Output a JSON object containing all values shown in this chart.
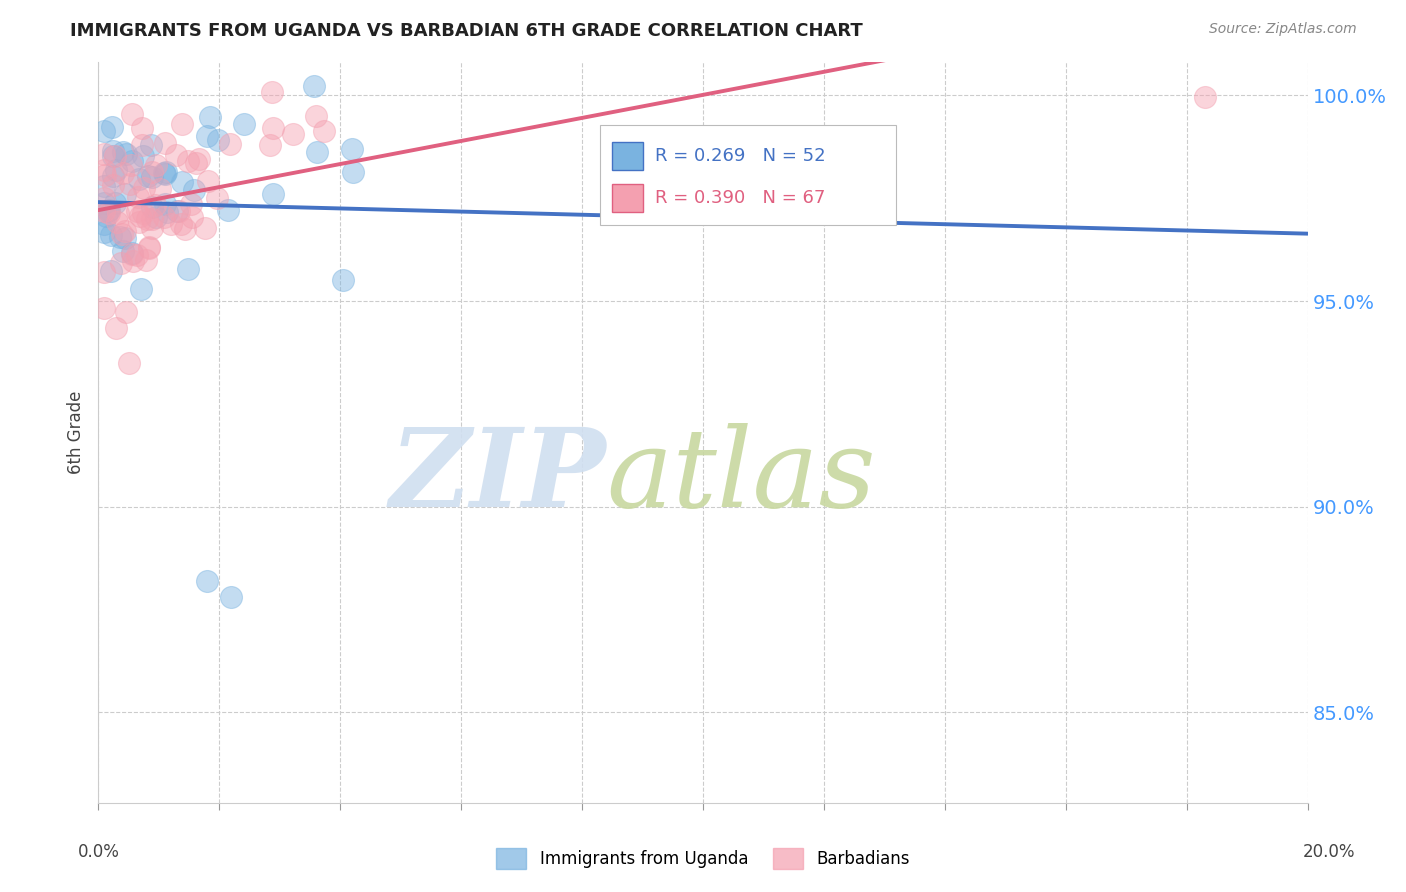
{
  "title": "IMMIGRANTS FROM UGANDA VS BARBADIAN 6TH GRADE CORRELATION CHART",
  "source": "Source: ZipAtlas.com",
  "ylabel": "6th Grade",
  "xlim": [
    0.0,
    0.2
  ],
  "ylim": [
    0.828,
    1.008
  ],
  "ytick_vals": [
    1.0,
    0.95,
    0.9,
    0.85
  ],
  "ytick_labels": [
    "100.0%",
    "95.0%",
    "90.0%",
    "85.0%"
  ],
  "xtick_vals": [
    0.0,
    0.02,
    0.04,
    0.06,
    0.08,
    0.1,
    0.12,
    0.14,
    0.16,
    0.18,
    0.2
  ],
  "uganda_color": "#7ab3e0",
  "barbadian_color": "#f4a0b0",
  "uganda_line_color": "#4472c4",
  "barbadian_line_color": "#e06080",
  "uganda_R": 0.269,
  "uganda_N": 52,
  "barbadian_R": 0.39,
  "barbadian_N": 67,
  "watermark_zip_color": "#d0dff0",
  "watermark_atlas_color": "#c8d8a0",
  "legend_R1": "R = 0.269",
  "legend_N1": "N = 52",
  "legend_R2": "R = 0.390",
  "legend_N2": "N = 67",
  "bottom_label1": "Immigrants from Uganda",
  "bottom_label2": "Barbadians"
}
